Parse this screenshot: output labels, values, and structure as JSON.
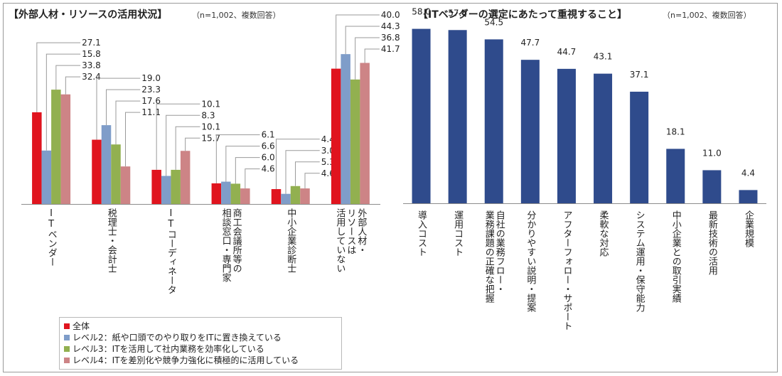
{
  "left_chart": {
    "title": "【外部人材・リソースの活用状況】",
    "note": "（n=1,002、複数回答）"
  },
  "right_chart": {
    "title": "【ITベンダーの選定にあたって重視すること】",
    "note": "（n=1,002、複数回答）"
  },
  "legend": {
    "items": [
      {
        "label": "全体",
        "color": "#e0141e"
      },
      {
        "label": "レベル2：紙や口頭でのやり取りをITに置き換えている",
        "color": "#7f9dc9"
      },
      {
        "label": "レベル3：ITを活用して社内業務を効率化している",
        "color": "#92b050"
      },
      {
        "label": "レベル4：ITを差別化や競争力強化に積極的に活用している",
        "color": "#cd8486"
      }
    ]
  },
  "chart_data": [
    {
      "type": "bar",
      "title": "【外部人材・リソースの活用状況】",
      "categories": [
        "ITベンダー",
        "税理士・会計士",
        "ITコーディネータ",
        "商工会議所等の相談窓口・専門家",
        "中小企業診断士",
        "外部人材・リソースは活用していない"
      ],
      "category_lines": [
        [
          "ITベンダー"
        ],
        [
          "税理士・会計士"
        ],
        [
          "ITコーディネータ"
        ],
        [
          "商工会議所等の",
          "相談窓口・専門家"
        ],
        [
          "中小企業診断士"
        ],
        [
          "外部人材・",
          "リソースは",
          "活用していない"
        ]
      ],
      "series": [
        {
          "name": "全体",
          "color": "#e0141e",
          "values": [
            27.1,
            19.0,
            10.1,
            6.1,
            4.4,
            40.0
          ]
        },
        {
          "name": "レベル2：紙や口頭でのやり取りをITに置き換えている",
          "color": "#7f9dc9",
          "values": [
            15.8,
            23.3,
            8.3,
            6.6,
            3.0,
            44.3
          ]
        },
        {
          "name": "レベル3：ITを活用して社内業務を効率化している",
          "color": "#92b050",
          "values": [
            33.8,
            17.6,
            10.1,
            6.0,
            5.3,
            36.8
          ]
        },
        {
          "name": "レベル4：ITを差別化や競争力強化に積極的に活用している",
          "color": "#cd8486",
          "values": [
            32.4,
            11.1,
            15.7,
            4.6,
            4.6,
            41.7
          ]
        }
      ],
      "ylim": [
        0,
        50
      ],
      "grid": false,
      "legend_position": "bottom-left"
    },
    {
      "type": "bar",
      "title": "【ITベンダーの選定にあたって重視すること】",
      "categories": [
        "導入コスト",
        "運用コスト",
        "自社の業務フロー・業務課題の正確な把握",
        "分かりやすい説明・提案",
        "アフターフォロー・サポート",
        "柔軟な対応",
        "システム運用・保守能力",
        "中小企業との取引実績",
        "最新技術の活用",
        "企業規模"
      ],
      "category_lines": [
        [
          "導入コスト"
        ],
        [
          "運用コスト"
        ],
        [
          "自社の業務フロー・",
          "業務課題の正確な把握"
        ],
        [
          "分かりやすい説明・提案"
        ],
        [
          "アフターフォロー・サポート"
        ],
        [
          "柔軟な対応"
        ],
        [
          "システム運用・保守能力"
        ],
        [
          "中小企業との取引実績"
        ],
        [
          "最新技術の活用"
        ],
        [
          "企業規模"
        ]
      ],
      "series": [
        {
          "color": "#2f4b8c",
          "values": [
            58.0,
            57.6,
            54.5,
            47.7,
            44.7,
            43.1,
            37.1,
            18.1,
            11.0,
            4.4
          ]
        }
      ],
      "ylim": [
        0,
        60
      ],
      "grid": false
    }
  ]
}
